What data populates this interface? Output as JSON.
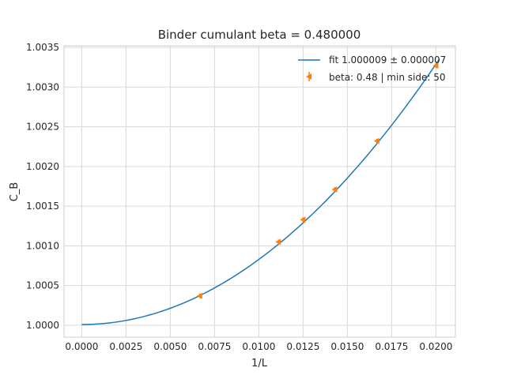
{
  "chart_data": {
    "type": "scatter",
    "title": "Binder cumulant beta = 0.480000",
    "xlabel": "1/L",
    "ylabel": "C_B",
    "xlim": [
      -0.001,
      0.0211
    ],
    "ylim": [
      0.99985,
      1.00352
    ],
    "x_ticks": [
      0.0,
      0.0025,
      0.005,
      0.0075,
      0.01,
      0.0125,
      0.015,
      0.0175,
      0.02
    ],
    "x_tick_labels": [
      "0.0000",
      "0.0025",
      "0.0050",
      "0.0075",
      "0.0100",
      "0.0125",
      "0.0150",
      "0.0175",
      "0.0200"
    ],
    "y_ticks": [
      1.0,
      1.0005,
      1.001,
      1.0015,
      1.002,
      1.0025,
      1.003,
      1.0035
    ],
    "y_tick_labels": [
      "1.0000",
      "1.0005",
      "1.0010",
      "1.0015",
      "1.0020",
      "1.0025",
      "1.0030",
      "1.0035"
    ],
    "grid": true,
    "legend_position": "top-right",
    "series": [
      {
        "name": "fit 1.000009 ± 0.000007",
        "kind": "line",
        "color": "#1f77b4",
        "coefficients": {
          "a": 1.000009,
          "b": 0.0,
          "c": 8.2
        },
        "x_range": [
          0.0,
          0.0202
        ]
      },
      {
        "name": "beta: 0.48 | min side: 50",
        "kind": "errorbar",
        "marker": "left-triangle",
        "color": "#ff7f0e",
        "x": [
          0.00667,
          0.01111,
          0.0125,
          0.01429,
          0.01667,
          0.02
        ],
        "y": [
          1.00037,
          1.00105,
          1.00133,
          1.00171,
          1.00232,
          1.00327
        ]
      }
    ]
  }
}
